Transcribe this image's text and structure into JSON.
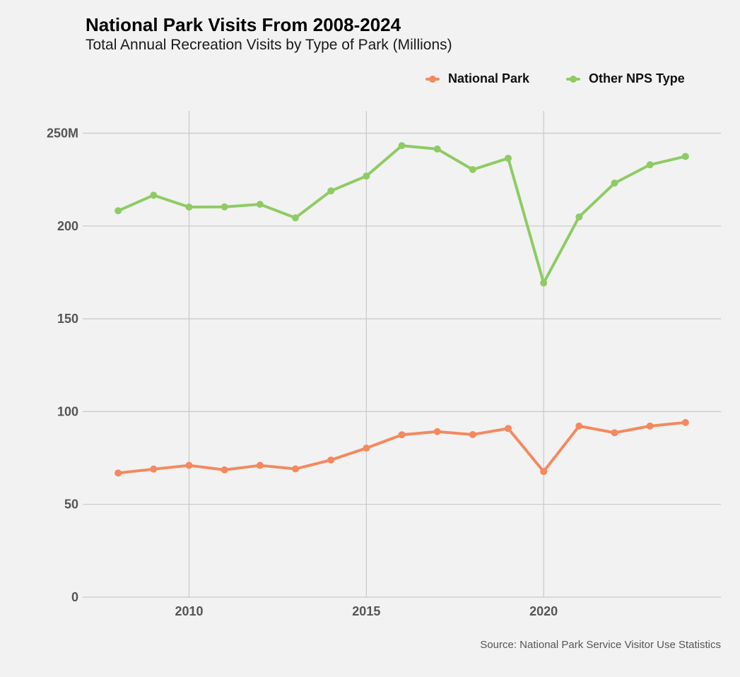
{
  "chart_data": {
    "type": "line",
    "title": "National Park Visits From 2008-2024",
    "subtitle": "Total Annual Recreation Visits by Type of Park (Millions)",
    "xlabel": "",
    "ylabel": "",
    "source": "Source: National Park Service Visitor Use Statistics",
    "x": [
      2008,
      2009,
      2010,
      2011,
      2012,
      2013,
      2014,
      2015,
      2016,
      2017,
      2018,
      2019,
      2020,
      2021,
      2022,
      2023,
      2024
    ],
    "xlim": [
      2007,
      2025
    ],
    "ylim": [
      0,
      262
    ],
    "x_ticks": [
      2010,
      2015,
      2020
    ],
    "x_tick_labels": [
      "2010",
      "2015",
      "2020"
    ],
    "y_ticks": [
      0,
      50,
      100,
      150,
      200,
      250
    ],
    "y_tick_labels": [
      "0",
      "50",
      "100",
      "150",
      "200",
      "250M"
    ],
    "grid": true,
    "legend_position": "top-right",
    "series": [
      {
        "name": "National Park",
        "color": "#F4895F",
        "values": [
          66.9,
          69.0,
          71.0,
          68.6,
          71.0,
          69.1,
          73.9,
          80.3,
          87.5,
          89.2,
          87.6,
          90.9,
          67.7,
          92.2,
          88.6,
          92.2,
          94.1
        ]
      },
      {
        "name": "Other NPS Type",
        "color": "#8FCB65",
        "values": [
          208.2,
          216.6,
          210.2,
          210.3,
          211.7,
          204.4,
          218.9,
          226.9,
          243.3,
          241.5,
          230.4,
          236.5,
          169.3,
          204.9,
          223.1,
          233.0,
          237.5
        ]
      }
    ]
  }
}
